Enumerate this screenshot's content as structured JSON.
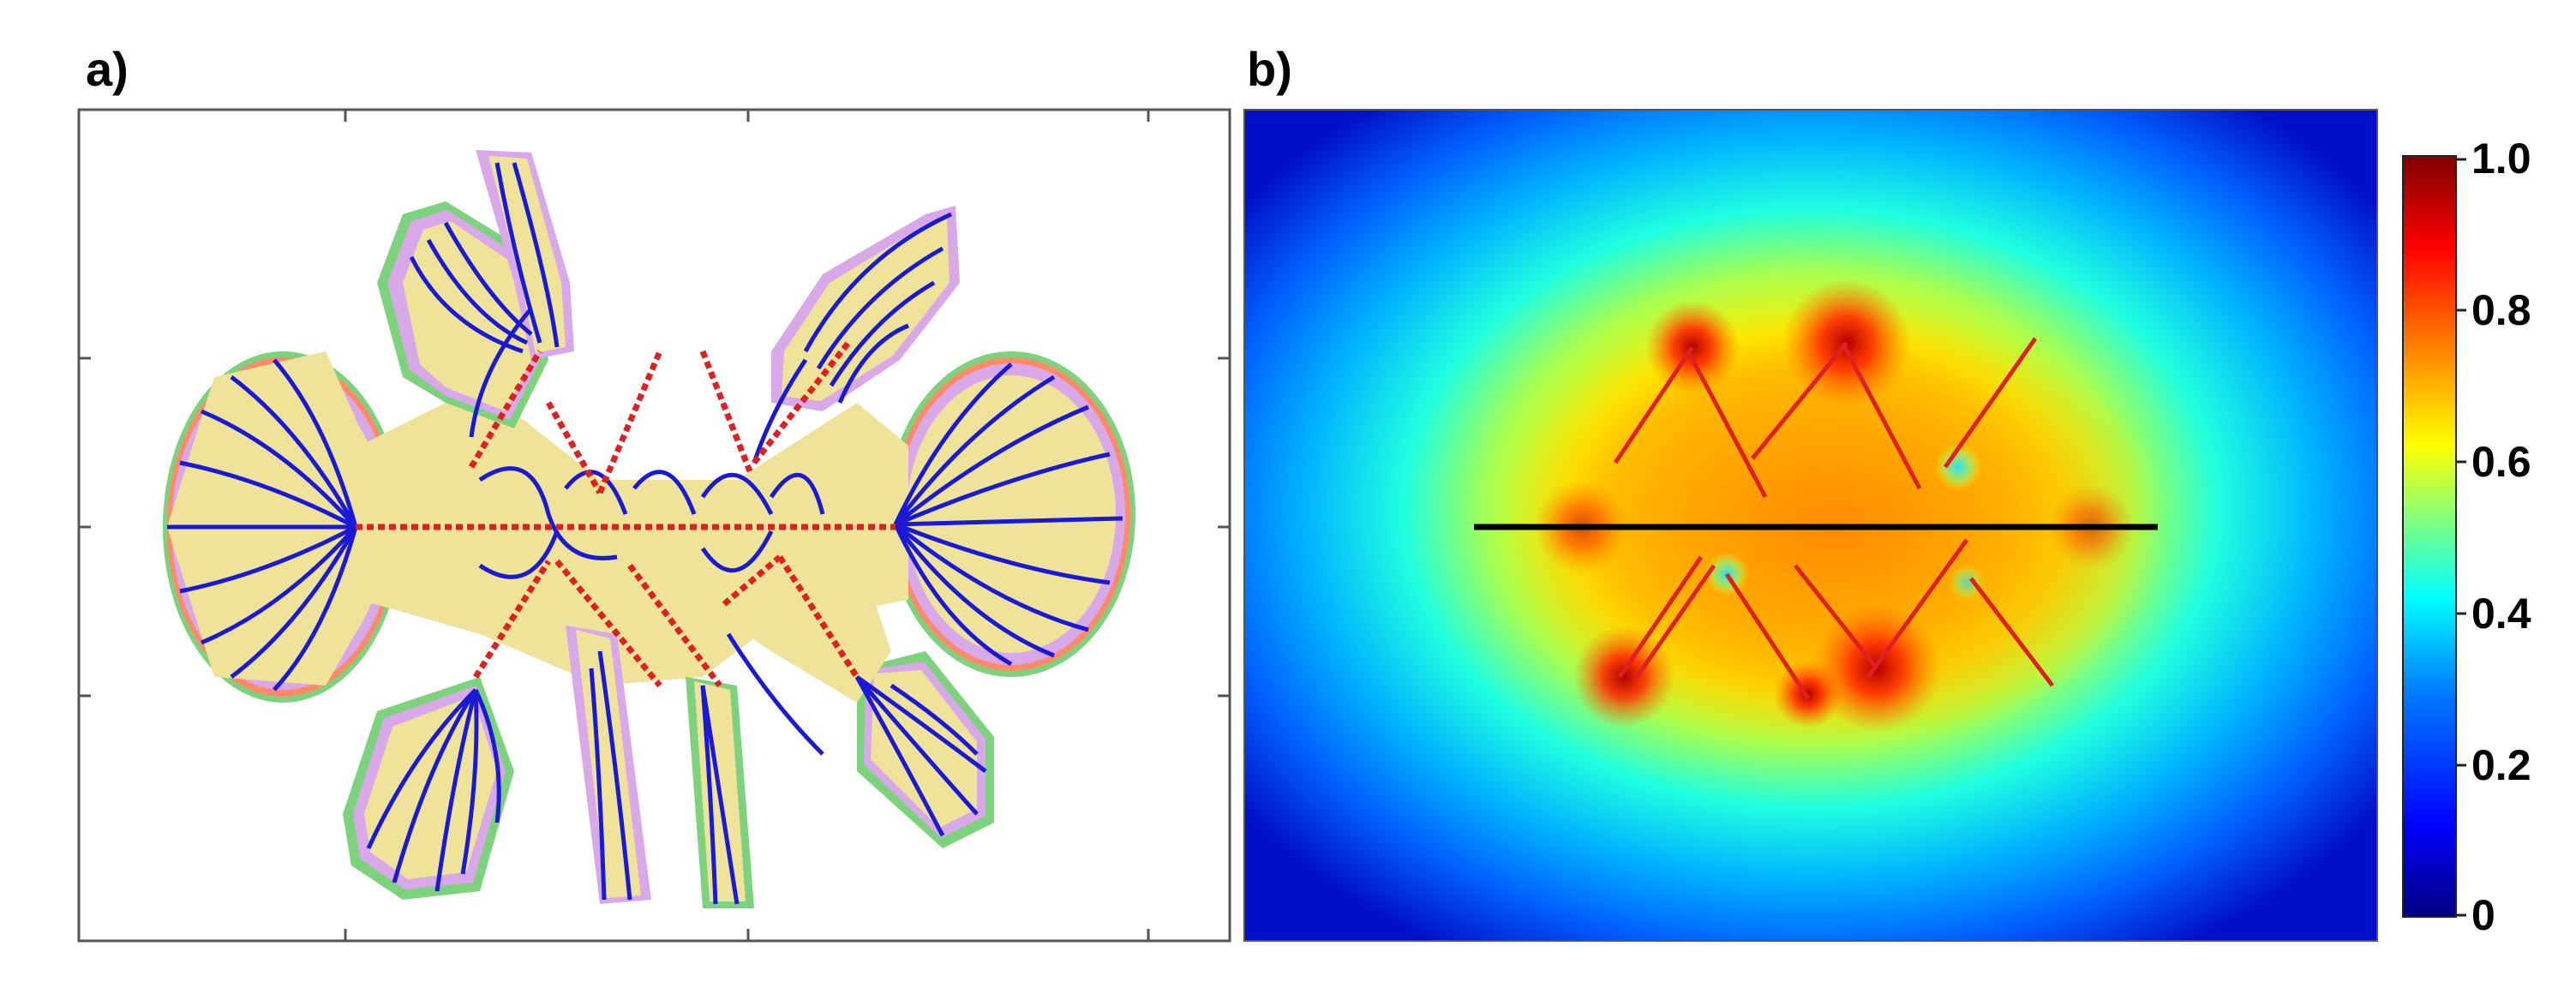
{
  "panels": {
    "a": {
      "label": "a)"
    },
    "b": {
      "label": "b)"
    }
  },
  "colorbar": {
    "ticks": [
      "1.0",
      "0.8",
      "0.6",
      "0.4",
      "0.2",
      "0"
    ],
    "tick_values": [
      1.0,
      0.8,
      0.6,
      0.4,
      0.2,
      0.0
    ],
    "colormap": [
      "#00007f",
      "#0000ff",
      "#0080ff",
      "#00ffff",
      "#80ff80",
      "#ffff00",
      "#ff8000",
      "#ff0000",
      "#7f0000"
    ]
  },
  "colors": {
    "field_line": "#1a1ad6",
    "crack": "#e02020",
    "fill": "#efe39a",
    "axis_frame": "#555555",
    "horizontal_crack_b": "#000000"
  }
}
